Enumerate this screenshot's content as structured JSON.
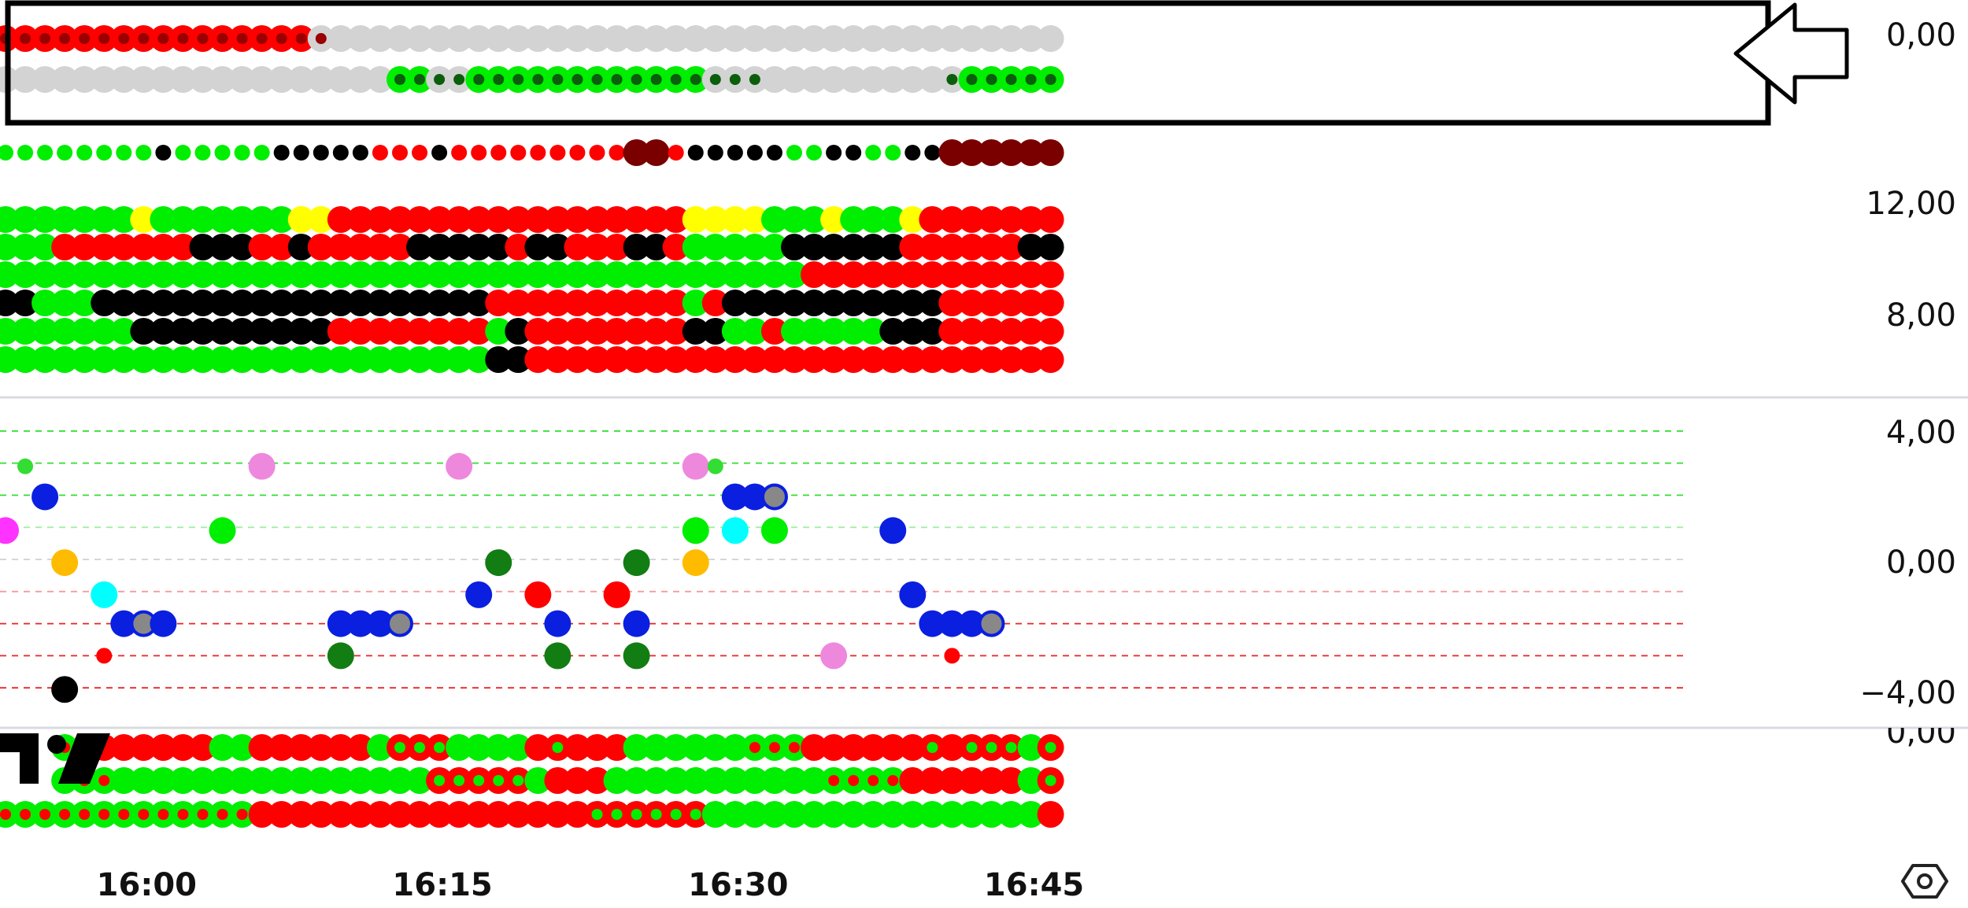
{
  "chart_data": {
    "type": "scatter",
    "description_panels": "Multi-pane dot-matrix indicator chart, one column per 1-minute bar, 54 bars from 15:53 to 16:46",
    "x_axis": {
      "start_time": "15:53",
      "bar_minutes": 1,
      "bars": 54,
      "tick_labels": [
        "16:00",
        "16:15",
        "16:30",
        "16:45"
      ]
    },
    "panes": [
      {
        "id": "pane1",
        "y_ticks": [
          "0,00"
        ],
        "highlighted": true,
        "rows": [
          {
            "name": "row1",
            "dots": [
              "r",
              "r",
              "r",
              "r",
              "r",
              "r",
              "r",
              "r",
              "r",
              "r",
              "r",
              "r",
              "r",
              "r",
              "r",
              "r",
              "s",
              "g",
              "g",
              "g",
              "g",
              "g",
              "g",
              "g",
              "g",
              "g",
              "g",
              "g",
              "g",
              "g",
              "g",
              "g",
              "g",
              "g",
              "g",
              "g",
              "g",
              "g",
              "g",
              "g",
              "g",
              "g",
              "g",
              "g",
              "g",
              "g",
              "g",
              "g",
              "g",
              "g",
              "g",
              "g",
              "g",
              "g"
            ]
          },
          {
            "name": "row2",
            "dots": [
              "g",
              "g",
              "g",
              "g",
              "g",
              "g",
              "g",
              "g",
              "g",
              "g",
              "g",
              "g",
              "g",
              "g",
              "g",
              "g",
              "g",
              "g",
              "g",
              "g",
              "G",
              "G",
              "s",
              "s",
              "G",
              "G",
              "G",
              "G",
              "G",
              "G",
              "G",
              "G",
              "G",
              "G",
              "G",
              "G",
              "s",
              "s",
              "s",
              "g",
              "g",
              "g",
              "g",
              "g",
              "g",
              "g",
              "g",
              "g",
              "s",
              "G",
              "G",
              "G",
              "G",
              "G"
            ]
          }
        ]
      },
      {
        "id": "pane2",
        "y_ticks": [
          "12,00",
          "8,00"
        ],
        "small_row": [
          "g",
          "g",
          "g",
          "g",
          "g",
          "g",
          "g",
          "g",
          "k",
          "g",
          "g",
          "g",
          "g",
          "g",
          "k",
          "k",
          "k",
          "k",
          "k",
          "r",
          "r",
          "r",
          "k",
          "r",
          "r",
          "r",
          "r",
          "r",
          "r",
          "r",
          "r",
          "r",
          "x",
          "x",
          "r",
          "k",
          "k",
          "k",
          "k",
          "k",
          "g",
          "g",
          "k",
          "k",
          "g",
          "g",
          "k",
          "k",
          "x",
          "x",
          "x",
          "x",
          "x",
          "x"
        ],
        "grid": [
          [
            "g",
            "g",
            "g",
            "g",
            "g",
            "g",
            "g",
            "y",
            "g",
            "g",
            "g",
            "g",
            "g",
            "g",
            "g",
            "y",
            "y",
            "r",
            "r",
            "r",
            "r",
            "r",
            "r",
            "r",
            "r",
            "r",
            "r",
            "r",
            "r",
            "r",
            "r",
            "r",
            "r",
            "r",
            "r",
            "y",
            "y",
            "y",
            "y",
            "g",
            "g",
            "g",
            "y",
            "g",
            "g",
            "g",
            "y",
            "r",
            "r",
            "r",
            "r",
            "r",
            "r",
            "r"
          ],
          [
            "g",
            "g",
            "g",
            "r",
            "r",
            "r",
            "r",
            "r",
            "r",
            "r",
            "k",
            "k",
            "k",
            "r",
            "r",
            "k",
            "r",
            "r",
            "r",
            "r",
            "r",
            "k",
            "k",
            "k",
            "k",
            "k",
            "r",
            "k",
            "k",
            "r",
            "r",
            "r",
            "k",
            "k",
            "r",
            "g",
            "g",
            "g",
            "g",
            "g",
            "k",
            "k",
            "k",
            "k",
            "k",
            "k",
            "r",
            "r",
            "r",
            "r",
            "r",
            "r",
            "k",
            "k"
          ],
          [
            "g",
            "g",
            "g",
            "g",
            "g",
            "g",
            "g",
            "g",
            "g",
            "g",
            "g",
            "g",
            "g",
            "g",
            "g",
            "g",
            "g",
            "g",
            "g",
            "g",
            "g",
            "g",
            "g",
            "g",
            "g",
            "g",
            "g",
            "g",
            "g",
            "g",
            "g",
            "g",
            "g",
            "g",
            "g",
            "g",
            "g",
            "g",
            "g",
            "g",
            "g",
            "r",
            "r",
            "r",
            "r",
            "r",
            "r",
            "r",
            "r",
            "r",
            "r",
            "r",
            "r",
            "r"
          ],
          [
            "k",
            "k",
            "g",
            "g",
            "g",
            "k",
            "k",
            "k",
            "k",
            "k",
            "k",
            "k",
            "k",
            "k",
            "k",
            "k",
            "k",
            "k",
            "k",
            "k",
            "k",
            "k",
            "k",
            "k",
            "k",
            "r",
            "r",
            "r",
            "r",
            "r",
            "r",
            "r",
            "r",
            "r",
            "r",
            "g",
            "r",
            "k",
            "k",
            "k",
            "k",
            "k",
            "k",
            "k",
            "k",
            "k",
            "k",
            "k",
            "r",
            "r",
            "r",
            "r",
            "r",
            "r"
          ],
          [
            "g",
            "g",
            "g",
            "g",
            "g",
            "g",
            "g",
            "k",
            "k",
            "k",
            "k",
            "k",
            "k",
            "k",
            "k",
            "k",
            "k",
            "r",
            "r",
            "r",
            "r",
            "r",
            "r",
            "r",
            "r",
            "g",
            "k",
            "r",
            "r",
            "r",
            "r",
            "r",
            "r",
            "r",
            "r",
            "k",
            "k",
            "g",
            "g",
            "r",
            "g",
            "g",
            "g",
            "g",
            "g",
            "k",
            "k",
            "k",
            "r",
            "r",
            "r",
            "r",
            "r",
            "r"
          ],
          [
            "g",
            "g",
            "g",
            "g",
            "g",
            "g",
            "g",
            "g",
            "g",
            "g",
            "g",
            "g",
            "g",
            "g",
            "g",
            "g",
            "g",
            "g",
            "g",
            "g",
            "g",
            "g",
            "g",
            "g",
            "g",
            "k",
            "k",
            "r",
            "r",
            "r",
            "r",
            "r",
            "r",
            "r",
            "r",
            "r",
            "r",
            "r",
            "r",
            "r",
            "r",
            "r",
            "r",
            "r",
            "r",
            "r",
            "r",
            "r",
            "r",
            "r",
            "r",
            "r",
            "r",
            "r"
          ]
        ]
      },
      {
        "id": "pane3",
        "y_ticks": [
          "4,00",
          "0,00",
          "-4,00"
        ],
        "ylim": [
          -4.2,
          4.4
        ],
        "reference_lines": [
          4,
          3,
          2,
          1,
          0,
          -1,
          -2,
          -3,
          -4
        ],
        "points": [
          {
            "i": 0,
            "y": 0.9,
            "color": "#ff33ff",
            "r": "L"
          },
          {
            "i": 1,
            "y": 2.9,
            "color": "#33dd33",
            "r": "S"
          },
          {
            "i": 2,
            "y": 1.95,
            "color": "#0a1fe0",
            "r": "L"
          },
          {
            "i": 3,
            "y": -0.1,
            "color": "#ffbb00",
            "r": "L"
          },
          {
            "i": 3,
            "y": -4.05,
            "color": "#000000",
            "r": "L"
          },
          {
            "i": 5,
            "y": -1.1,
            "color": "#00ffff",
            "r": "L"
          },
          {
            "i": 5,
            "y": -3.0,
            "color": "#ff0000",
            "r": "S"
          },
          {
            "i": 6,
            "y": -2.0,
            "color": "#0a1fe0",
            "r": "L"
          },
          {
            "i": 7,
            "y": -2.0,
            "color": "#888888",
            "r": "L",
            "ring": "#0a1fe0"
          },
          {
            "i": 8,
            "y": -2.0,
            "color": "#0a1fe0",
            "r": "L"
          },
          {
            "i": 11,
            "y": 0.9,
            "color": "#00ee00",
            "r": "L"
          },
          {
            "i": 13,
            "y": 2.9,
            "color": "#ee88dd",
            "r": "L"
          },
          {
            "i": 17,
            "y": -2.0,
            "color": "#0a1fe0",
            "r": "L"
          },
          {
            "i": 17,
            "y": -3.0,
            "color": "#127d12",
            "r": "L"
          },
          {
            "i": 18,
            "y": -2.0,
            "color": "#0a1fe0",
            "r": "L"
          },
          {
            "i": 19,
            "y": -2.0,
            "color": "#0a1fe0",
            "r": "L"
          },
          {
            "i": 20,
            "y": -2.0,
            "color": "#888888",
            "r": "L",
            "ring": "#0a1fe0"
          },
          {
            "i": 23,
            "y": 2.9,
            "color": "#ee88dd",
            "r": "L"
          },
          {
            "i": 24,
            "y": -1.1,
            "color": "#0a1fe0",
            "r": "L"
          },
          {
            "i": 25,
            "y": -0.1,
            "color": "#127d12",
            "r": "L"
          },
          {
            "i": 27,
            "y": -1.1,
            "color": "#ff0000",
            "r": "L"
          },
          {
            "i": 28,
            "y": -2.0,
            "color": "#0a1fe0",
            "r": "L"
          },
          {
            "i": 28,
            "y": -3.0,
            "color": "#127d12",
            "r": "L"
          },
          {
            "i": 31,
            "y": -1.1,
            "color": "#ff0000",
            "r": "L"
          },
          {
            "i": 32,
            "y": -0.1,
            "color": "#127d12",
            "r": "L"
          },
          {
            "i": 32,
            "y": -2.0,
            "color": "#0a1fe0",
            "r": "L"
          },
          {
            "i": 32,
            "y": -3.0,
            "color": "#127d12",
            "r": "L"
          },
          {
            "i": 35,
            "y": 2.9,
            "color": "#ee88dd",
            "r": "L"
          },
          {
            "i": 35,
            "y": 0.9,
            "color": "#00ee00",
            "r": "L"
          },
          {
            "i": 35,
            "y": -0.1,
            "color": "#ffbb00",
            "r": "L"
          },
          {
            "i": 36,
            "y": 2.9,
            "color": "#33dd33",
            "r": "S"
          },
          {
            "i": 37,
            "y": 1.95,
            "color": "#0a1fe0",
            "r": "L"
          },
          {
            "i": 37,
            "y": 0.9,
            "color": "#00ffff",
            "r": "L"
          },
          {
            "i": 38,
            "y": 1.95,
            "color": "#0a1fe0",
            "r": "L"
          },
          {
            "i": 39,
            "y": 1.95,
            "color": "#888888",
            "r": "L",
            "ring": "#0a1fe0"
          },
          {
            "i": 39,
            "y": 0.9,
            "color": "#00ee00",
            "r": "L"
          },
          {
            "i": 42,
            "y": -3.0,
            "color": "#ee88dd",
            "r": "L"
          },
          {
            "i": 45,
            "y": 0.9,
            "color": "#0a1fe0",
            "r": "L"
          },
          {
            "i": 46,
            "y": -1.1,
            "color": "#0a1fe0",
            "r": "L"
          },
          {
            "i": 47,
            "y": -2.0,
            "color": "#0a1fe0",
            "r": "L"
          },
          {
            "i": 48,
            "y": -2.0,
            "color": "#0a1fe0",
            "r": "L"
          },
          {
            "i": 48,
            "y": -3.0,
            "color": "#ff0000",
            "r": "S"
          },
          {
            "i": 49,
            "y": -2.0,
            "color": "#0a1fe0",
            "r": "L"
          },
          {
            "i": 50,
            "y": -2.0,
            "color": "#888888",
            "r": "L",
            "ring": "#0a1fe0"
          }
        ]
      },
      {
        "id": "pane4",
        "y_ticks": [
          "0,00"
        ],
        "grid": [
          [
            "gr",
            "gr",
            "gr",
            "gr",
            "gr",
            "r",
            "r",
            "r",
            "r",
            "r",
            "r",
            "g",
            "g",
            "r",
            "r",
            "r",
            "r",
            "r",
            "r",
            "g",
            "rg",
            "rg",
            "rg",
            "g",
            "g",
            "g",
            "g",
            "r",
            "rg",
            "r",
            "r",
            "r",
            "g",
            "g",
            "g",
            "g",
            "g",
            "g",
            "gr",
            "gr",
            "gr",
            "r",
            "r",
            "r",
            "r",
            "r",
            "r",
            "rg",
            "r",
            "rg",
            "rg",
            "rg",
            "g",
            "rg"
          ],
          [
            "rr",
            "gr",
            "g",
            "g",
            "gr",
            "gr",
            "g",
            "g",
            "g",
            "g",
            "g",
            "g",
            "g",
            "g",
            "g",
            "g",
            "g",
            "g",
            "g",
            "g",
            "g",
            "g",
            "rg",
            "rg",
            "rg",
            "rg",
            "rg",
            "g",
            "r",
            "r",
            "r",
            "g",
            "g",
            "g",
            "g",
            "g",
            "g",
            "g",
            "g",
            "g",
            "g",
            "g",
            "gr",
            "gr",
            "gr",
            "gr",
            "r",
            "r",
            "r",
            "r",
            "r",
            "r",
            "g",
            "rg"
          ],
          [
            "gr",
            "gr",
            "gr",
            "gr",
            "gr",
            "gr",
            "gr",
            "gr",
            "gr",
            "gr",
            "gr",
            "gr",
            "gr",
            "r",
            "r",
            "r",
            "r",
            "r",
            "r",
            "r",
            "r",
            "r",
            "r",
            "r",
            "r",
            "r",
            "r",
            "r",
            "r",
            "r",
            "rg",
            "rg",
            "rg",
            "rg",
            "rg",
            "rg",
            "g",
            "g",
            "g",
            "g",
            "g",
            "g",
            "g",
            "g",
            "g",
            "g",
            "g",
            "g",
            "g",
            "g",
            "g",
            "g",
            "g",
            "r"
          ]
        ]
      }
    ]
  },
  "colors": {
    "g": "#00ee00",
    "G": "#00ee00",
    "r": "#ff0000",
    "k": "#000000",
    "y": "#ffff00",
    "x": "#7a0000",
    "s": "#d3d3d3",
    "darkGreenCenter": "#0b5e0b",
    "darkRedCenter": "#990000",
    "separator": "#d9dbe0",
    "refPositive": "#33dd33",
    "refNegative": "#ee2222"
  },
  "ui": {
    "back_arrow_icon": "left-arrow-icon",
    "settings_icon": "hexagon-gear-icon",
    "watermark": "TV"
  }
}
